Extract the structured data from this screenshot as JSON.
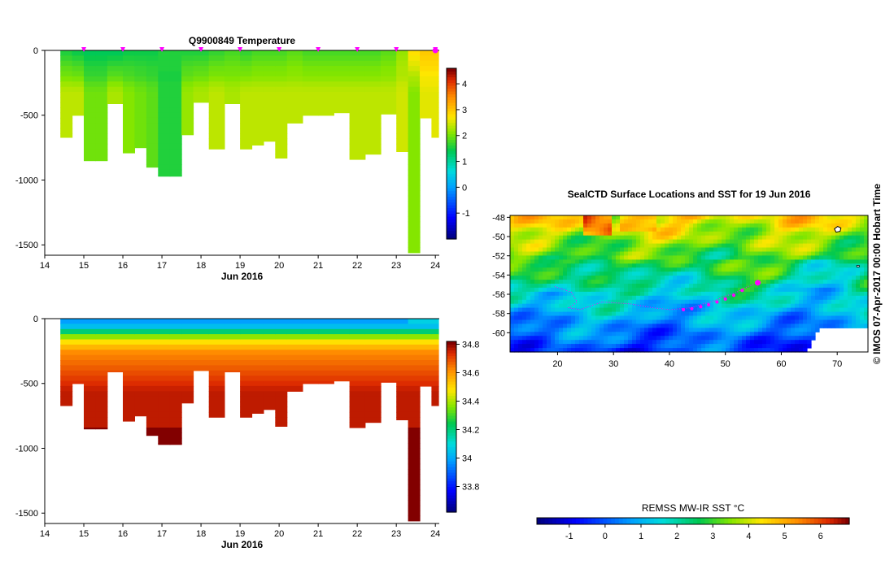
{
  "meta": {
    "credit": "© IMOS 07-Apr-2017 00:00 Hobart Time"
  },
  "colors": {
    "magenta": "#ff00ff",
    "white": "#ffffff",
    "axis": "#000000"
  },
  "chart_data": [
    {
      "type": "heatmap",
      "title": "Q9900849  Temperature",
      "xlabel": "Jun 2016",
      "ylabel": "",
      "x_ticks": [
        "14",
        "15",
        "16",
        "17",
        "18",
        "19",
        "20",
        "21",
        "22",
        "23",
        "24"
      ],
      "xlim": [
        14,
        24.1
      ],
      "y_ticks": [
        "0",
        "-500",
        "-1000",
        "-1500"
      ],
      "ylim": [
        -1580,
        0
      ],
      "colorbar": {
        "ticks": [
          "-1",
          "0",
          "1",
          "2",
          "3",
          "4"
        ],
        "range": [
          -2,
          4.6
        ]
      },
      "profile_markers_x": [
        15,
        16,
        17,
        18,
        19,
        20,
        21,
        22,
        23,
        24
      ],
      "profiles": [
        {
          "x": 14.4,
          "depth": -670,
          "surface": 1.6,
          "deep": 2.4
        },
        {
          "x": 14.7,
          "depth": -500,
          "surface": 1.5,
          "deep": 2.4
        },
        {
          "x": 15.0,
          "depth": -850,
          "surface": 1.4,
          "deep": 2.0
        },
        {
          "x": 15.3,
          "depth": -850,
          "surface": 1.4,
          "deep": 2.0
        },
        {
          "x": 15.6,
          "depth": -410,
          "surface": 1.4,
          "deep": 2.3
        },
        {
          "x": 16.0,
          "depth": -790,
          "surface": 1.5,
          "deep": 2.1
        },
        {
          "x": 16.3,
          "depth": -750,
          "surface": 1.5,
          "deep": 2.0
        },
        {
          "x": 16.6,
          "depth": -900,
          "surface": 1.5,
          "deep": 1.9
        },
        {
          "x": 16.9,
          "depth": -970,
          "surface": 1.6,
          "deep": 1.6
        },
        {
          "x": 17.2,
          "depth": -970,
          "surface": 1.6,
          "deep": 1.6
        },
        {
          "x": 17.5,
          "depth": -650,
          "surface": 1.6,
          "deep": 2.2
        },
        {
          "x": 17.8,
          "depth": -400,
          "surface": 1.6,
          "deep": 2.3
        },
        {
          "x": 18.2,
          "depth": -760,
          "surface": 1.7,
          "deep": 2.4
        },
        {
          "x": 18.6,
          "depth": -410,
          "surface": 1.8,
          "deep": 2.3
        },
        {
          "x": 19.0,
          "depth": -760,
          "surface": 1.7,
          "deep": 2.4
        },
        {
          "x": 19.3,
          "depth": -730,
          "surface": 1.8,
          "deep": 2.4
        },
        {
          "x": 19.6,
          "depth": -700,
          "surface": 1.8,
          "deep": 2.4
        },
        {
          "x": 19.9,
          "depth": -830,
          "surface": 1.8,
          "deep": 2.4
        },
        {
          "x": 20.2,
          "depth": -560,
          "surface": 1.9,
          "deep": 2.4
        },
        {
          "x": 20.6,
          "depth": -500,
          "surface": 1.8,
          "deep": 2.4
        },
        {
          "x": 21.0,
          "depth": -500,
          "surface": 1.8,
          "deep": 2.4
        },
        {
          "x": 21.4,
          "depth": -480,
          "surface": 1.8,
          "deep": 2.4
        },
        {
          "x": 21.8,
          "depth": -840,
          "surface": 1.8,
          "deep": 2.4
        },
        {
          "x": 22.2,
          "depth": -800,
          "surface": 1.8,
          "deep": 2.4
        },
        {
          "x": 22.6,
          "depth": -490,
          "surface": 1.9,
          "deep": 2.4
        },
        {
          "x": 23.0,
          "depth": -780,
          "surface": 2.2,
          "deep": 2.5
        },
        {
          "x": 23.3,
          "depth": -1560,
          "surface": 2.8,
          "deep": 2.1
        },
        {
          "x": 23.6,
          "depth": -520,
          "surface": 3.0,
          "deep": 2.6
        },
        {
          "x": 23.9,
          "depth": -670,
          "surface": 3.0,
          "deep": 2.6
        }
      ]
    },
    {
      "type": "heatmap",
      "title": "",
      "xlabel": "Jun 2016",
      "ylabel": "",
      "x_ticks": [
        "14",
        "15",
        "16",
        "17",
        "18",
        "19",
        "20",
        "21",
        "22",
        "23",
        "24"
      ],
      "xlim": [
        14,
        24.1
      ],
      "y_ticks": [
        "0",
        "-500",
        "-1000",
        "-1500"
      ],
      "ylim": [
        -1580,
        0
      ],
      "colorbar": {
        "ticks": [
          "33.8",
          "34",
          "34.2",
          "34.4",
          "34.6",
          "34.8"
        ],
        "range": [
          33.62,
          34.82
        ]
      },
      "profiles_ref": "same as temperature"
    },
    {
      "type": "heatmap",
      "title": "SealCTD Surface Locations and SST for 19 Jun 2016",
      "xlabel": "",
      "ylabel": "",
      "x_ticks": [
        "20",
        "30",
        "40",
        "50",
        "60",
        "70"
      ],
      "xlim": [
        11.5,
        75.5
      ],
      "y_ticks": [
        "-48",
        "-50",
        "-52",
        "-54",
        "-56",
        "-58",
        "-60"
      ],
      "ylim": [
        -62,
        -47.8
      ],
      "colorbar": {
        "label": "REMSS MW-IR SST °C",
        "ticks": [
          "-1",
          "0",
          "1",
          "2",
          "3",
          "4",
          "5",
          "6"
        ],
        "range": [
          -1.9,
          6.8
        ]
      },
      "track_lon": [
        19.5,
        21,
        22.5,
        23.5,
        22,
        24,
        28,
        33,
        37,
        40,
        42,
        44,
        46,
        48,
        50,
        52,
        54,
        55.8
      ],
      "track_lat": [
        -55.2,
        -55.5,
        -55.8,
        -56.8,
        -57.4,
        -57.6,
        -56.8,
        -57,
        -57.4,
        -57.6,
        -57.5,
        -57.4,
        -57.0,
        -56.7,
        -56.2,
        -55.8,
        -55.2,
        -54.8
      ],
      "seal_positions_lon": [
        42.5,
        44,
        45.6,
        47,
        48.5,
        50,
        51.5,
        53,
        55.8
      ],
      "seal_positions_lat": [
        -57.6,
        -57.5,
        -57.3,
        -57.1,
        -56.8,
        -56.5,
        -56.1,
        -55.6,
        -54.8
      ]
    }
  ]
}
